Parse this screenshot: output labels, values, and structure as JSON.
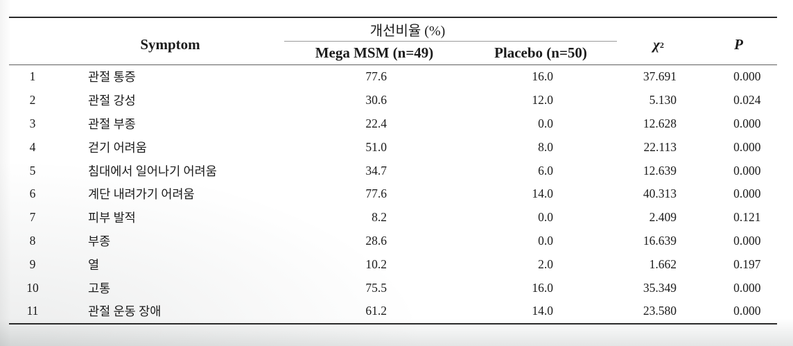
{
  "header": {
    "symptom": "Symptom",
    "improvement_group": "개선비율 (%)",
    "mega_msm": "Mega MSM (n=49)",
    "placebo": "Placebo (n=50)",
    "chi_square_base": "χ",
    "chi_square_exp": "2",
    "p": "P"
  },
  "rows": [
    {
      "no": "1",
      "symptom": "관절 통증",
      "mega_msm": "77.6",
      "placebo": "16.0",
      "chi_square": "37.691",
      "p": "0.000"
    },
    {
      "no": "2",
      "symptom": "관절 강성",
      "mega_msm": "30.6",
      "placebo": "12.0",
      "chi_square": "5.130",
      "p": "0.024"
    },
    {
      "no": "3",
      "symptom": "관절 부종",
      "mega_msm": "22.4",
      "placebo": "0.0",
      "chi_square": "12.628",
      "p": "0.000"
    },
    {
      "no": "4",
      "symptom": "걷기 어려움",
      "mega_msm": "51.0",
      "placebo": "8.0",
      "chi_square": "22.113",
      "p": "0.000"
    },
    {
      "no": "5",
      "symptom": "침대에서 일어나기 어려움",
      "mega_msm": "34.7",
      "placebo": "6.0",
      "chi_square": "12.639",
      "p": "0.000"
    },
    {
      "no": "6",
      "symptom": "계단 내려가기 어려움",
      "mega_msm": "77.6",
      "placebo": "14.0",
      "chi_square": "40.313",
      "p": "0.000"
    },
    {
      "no": "7",
      "symptom": "피부 발적",
      "mega_msm": "8.2",
      "placebo": "0.0",
      "chi_square": "2.409",
      "p": "0.121"
    },
    {
      "no": "8",
      "symptom": "부종",
      "mega_msm": "28.6",
      "placebo": "0.0",
      "chi_square": "16.639",
      "p": "0.000"
    },
    {
      "no": "9",
      "symptom": "열",
      "mega_msm": "10.2",
      "placebo": "2.0",
      "chi_square": "1.662",
      "p": "0.197"
    },
    {
      "no": "10",
      "symptom": "고통",
      "mega_msm": "75.5",
      "placebo": "16.0",
      "chi_square": "35.349",
      "p": "0.000"
    },
    {
      "no": "11",
      "symptom": "관절 운동 장애",
      "mega_msm": "61.2",
      "placebo": "14.0",
      "chi_square": "23.580",
      "p": "0.000"
    }
  ],
  "colors": {
    "text": "#1b1b1b",
    "rule_dark": "#2a2a2a",
    "rule_medium": "#5f5f5f",
    "rule_light": "#9a9a9a",
    "page_background": "#ffffff",
    "bottom_fade": "#e4e7e7"
  }
}
